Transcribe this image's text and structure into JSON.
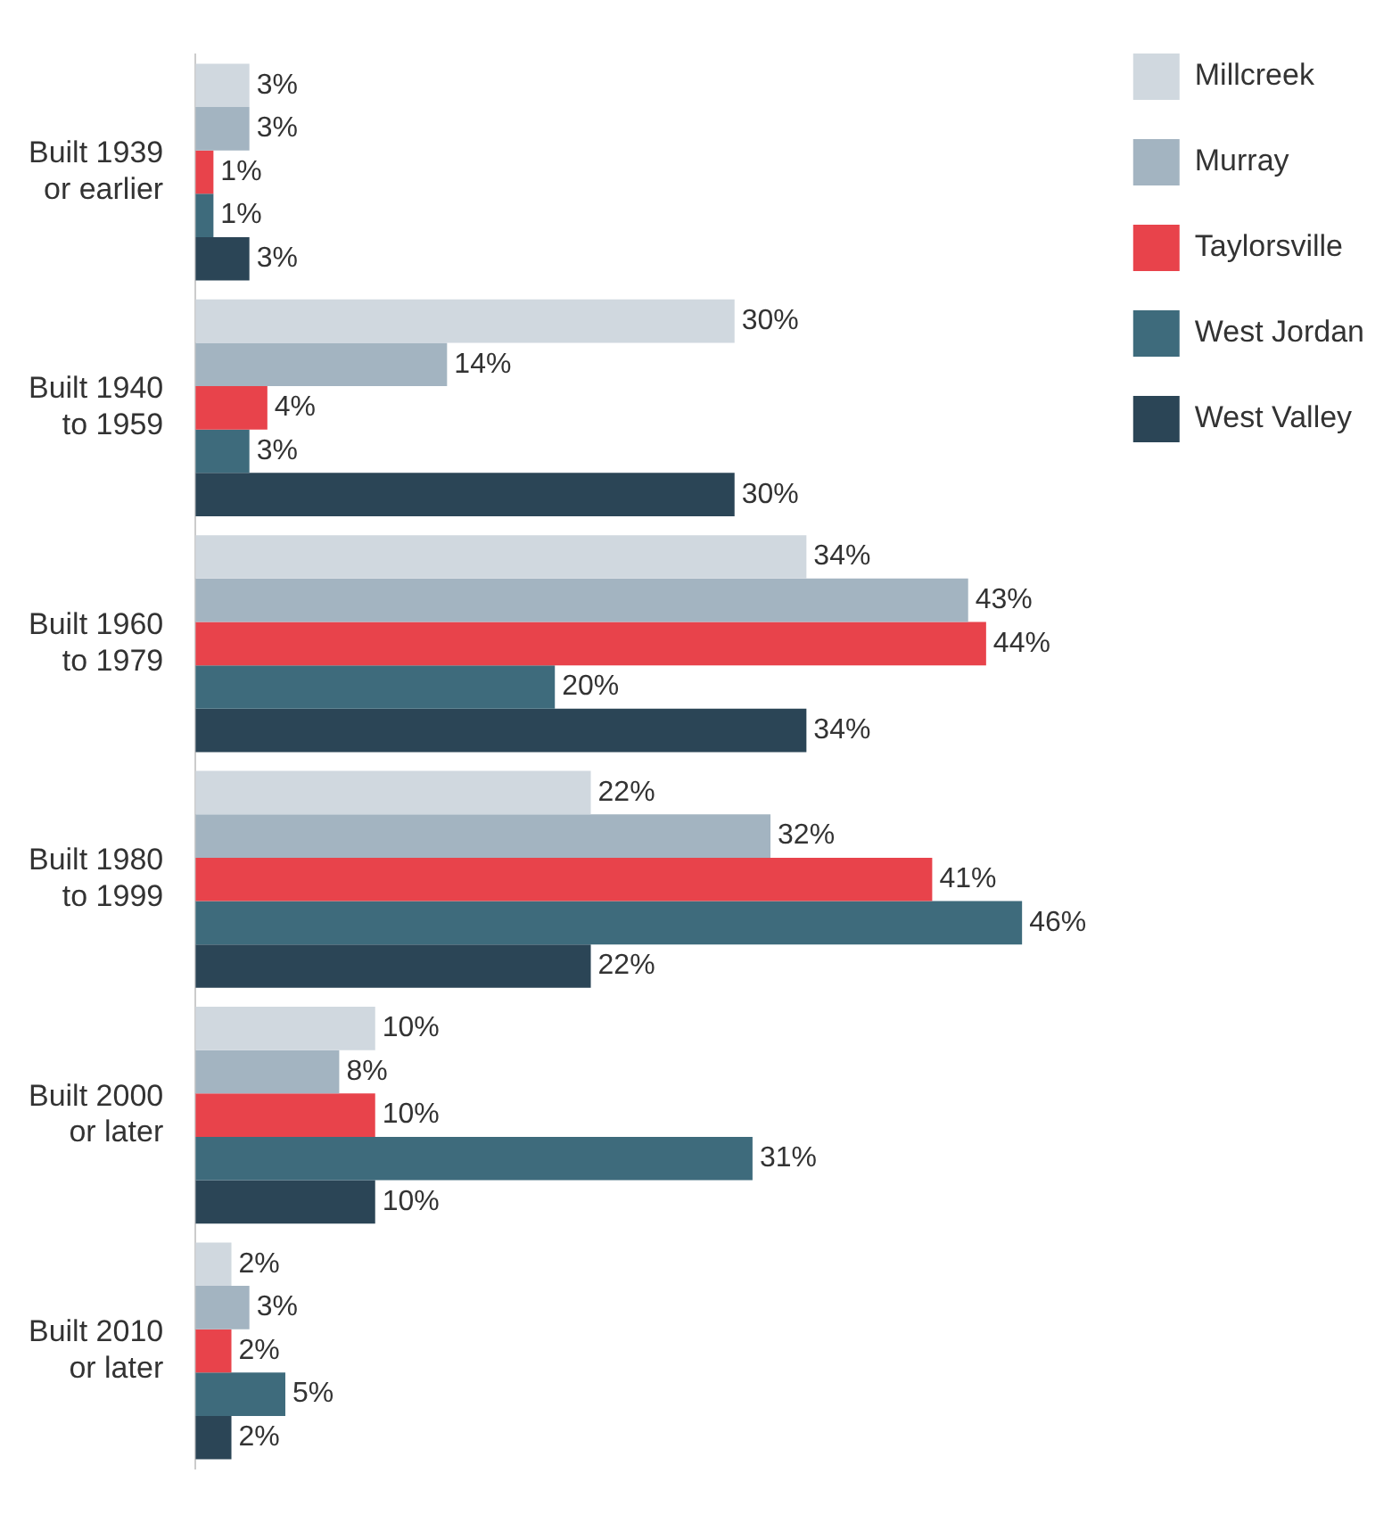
{
  "chart_data": {
    "type": "bar",
    "orientation": "horizontal",
    "categories": [
      "Built 1939 or earlier",
      "Built 1940 to 1959",
      "Built 1960 to 1979",
      "Built 1980 to 1999",
      "Built 2000 or later",
      "Built 2010 or later"
    ],
    "series": [
      {
        "name": "Millcreek",
        "color": "#d0d8df",
        "values": [
          3,
          30,
          34,
          22,
          10,
          2
        ],
        "value_labels": [
          "3%",
          "30%",
          "34%",
          "22%",
          "10%",
          "2%"
        ]
      },
      {
        "name": "Murray",
        "color": "#a3b4c1",
        "values": [
          3,
          14,
          43,
          32,
          8,
          3
        ],
        "value_labels": [
          "3%",
          "14%",
          "43%",
          "32%",
          "8%",
          "3%"
        ]
      },
      {
        "name": "Taylorsville",
        "color": "#e8434b",
        "values": [
          1,
          4,
          44,
          41,
          10,
          2
        ],
        "value_labels": [
          "1%",
          "4%",
          "44%",
          "41%",
          "10%",
          "2%"
        ]
      },
      {
        "name": "West Jordan",
        "color": "#3e6b7c",
        "values": [
          1,
          3,
          20,
          46,
          31,
          5
        ],
        "value_labels": [
          "1%",
          "3%",
          "20%",
          "46%",
          "31%",
          "5%"
        ]
      },
      {
        "name": "West Valley",
        "color": "#2b4556",
        "values": [
          3,
          30,
          34,
          22,
          10,
          2
        ],
        "value_labels": [
          "3%",
          "30%",
          "34%",
          "22%",
          "10%",
          "2%"
        ]
      }
    ],
    "grid": false,
    "legend": "top right",
    "tick_labels": "y"
  }
}
